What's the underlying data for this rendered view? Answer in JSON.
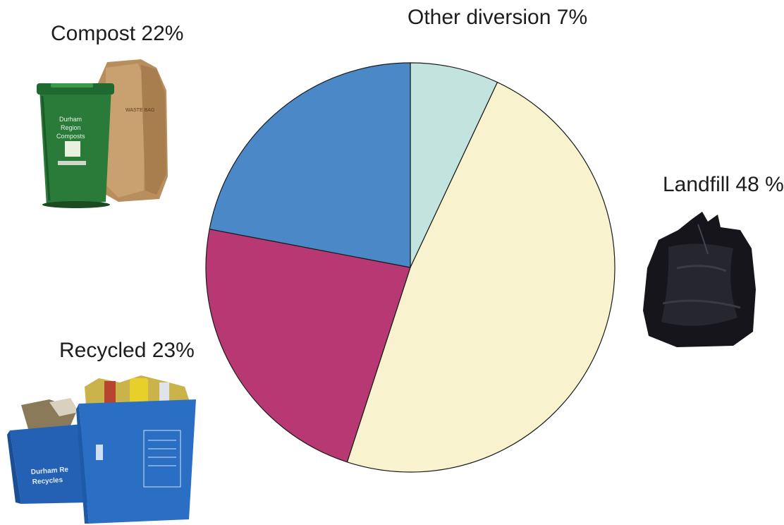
{
  "chart_data": {
    "type": "pie",
    "start_angle_deg": 0,
    "direction": "clockwise",
    "slices": [
      {
        "label": "Other diversion 7%",
        "value": 7,
        "color": "#c3e3df"
      },
      {
        "label": "Landfill 48 %",
        "value": 48,
        "color": "#f8f3ce"
      },
      {
        "label": "Recycled 23%",
        "value": 23,
        "color": "#b83873"
      },
      {
        "label": "Compost 22%",
        "value": 22,
        "color": "#4a88c7"
      }
    ],
    "outline_color": "#1a1a1a"
  },
  "icons": {
    "compost": "green-compost-bin-and-yard-bags-icon",
    "landfill": "black-garbage-bag-icon",
    "recycled": "blue-recycling-boxes-icon"
  }
}
